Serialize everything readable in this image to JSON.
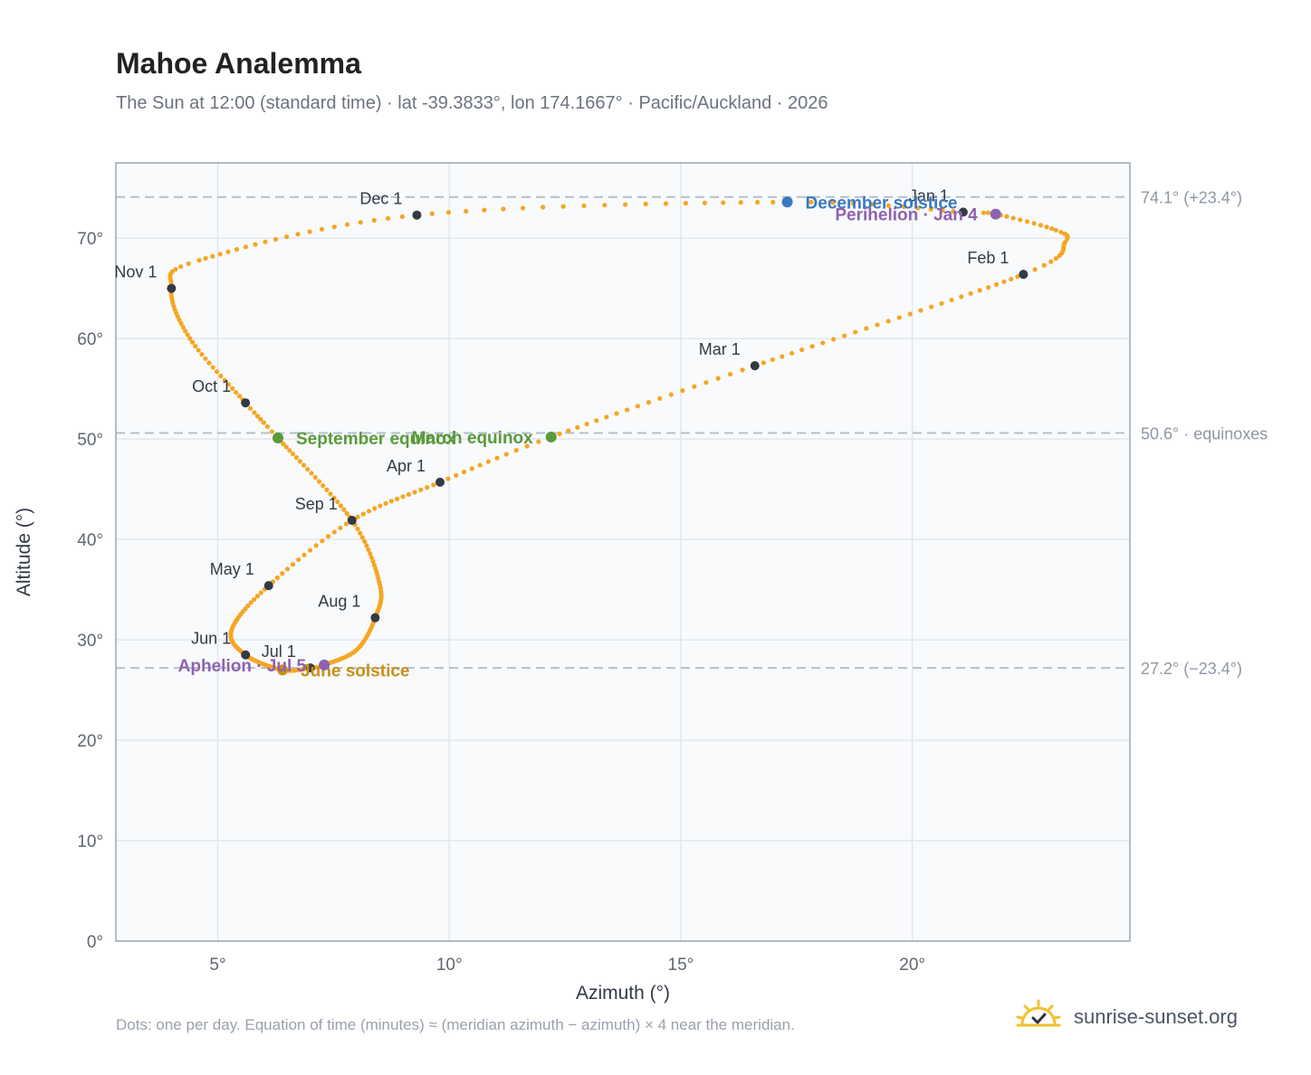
{
  "header": {
    "title": "Mahoe Analemma",
    "subtitle": "The Sun at 12:00 (standard time) · lat -39.3833°, lon 174.1667° · Pacific/Auckland · 2026"
  },
  "footer": {
    "note": "Dots: one per day. Equation of time (minutes) ≈ (meridian azimuth − azimuth) × 4 near the meridian.",
    "brand": "sunrise-sunset.org",
    "brand_icon": "sun-icon"
  },
  "colors": {
    "curve": "#f5a623",
    "month_dot": "#333a44",
    "equinox": "#5a9a3a",
    "december_solstice": "#3a78c0",
    "june_solstice": "#c8901a",
    "apsis": "#8e62b0",
    "plot_bg": "#f8fafc",
    "grid": "#e3e7ec",
    "reference_line": "#b4c0cc",
    "axis_text": "#5f6670"
  },
  "chart_data": {
    "type": "scatter",
    "title": "Mahoe Analemma",
    "xlabel": "Azimuth (°)",
    "ylabel": "Altitude (°)",
    "xlim": [
      2.8,
      24.7
    ],
    "ylim": [
      0,
      77.5
    ],
    "x_ticks": [
      5,
      10,
      15,
      20
    ],
    "y_ticks": [
      0,
      10,
      20,
      30,
      40,
      50,
      60,
      70
    ],
    "x_tick_labels": [
      "5°",
      "10°",
      "15°",
      "20°"
    ],
    "y_tick_labels": [
      "0°",
      "10°",
      "20°",
      "30°",
      "40°",
      "50°",
      "60°",
      "70°"
    ],
    "grid": true,
    "reference_lines": [
      {
        "altitude": 74.1,
        "label": "74.1° (+23.4°)"
      },
      {
        "altitude": 50.6,
        "label": "50.6° · equinoxes"
      },
      {
        "altitude": 27.2,
        "label": "27.2° (−23.4°)"
      }
    ],
    "month_markers": [
      {
        "label": "Jan 1",
        "azimuth": 21.1,
        "altitude": 72.6
      },
      {
        "label": "Feb 1",
        "azimuth": 22.4,
        "altitude": 66.4
      },
      {
        "label": "Mar 1",
        "azimuth": 16.6,
        "altitude": 57.3
      },
      {
        "label": "Apr 1",
        "azimuth": 9.8,
        "altitude": 45.7
      },
      {
        "label": "May 1",
        "azimuth": 6.1,
        "altitude": 35.4
      },
      {
        "label": "Jun 1",
        "azimuth": 5.6,
        "altitude": 28.5
      },
      {
        "label": "Jul 1",
        "azimuth": 7.0,
        "altitude": 27.2
      },
      {
        "label": "Aug 1",
        "azimuth": 8.4,
        "altitude": 32.2
      },
      {
        "label": "Sep 1",
        "azimuth": 7.9,
        "altitude": 41.9
      },
      {
        "label": "Oct 1",
        "azimuth": 5.6,
        "altitude": 53.6
      },
      {
        "label": "Nov 1",
        "azimuth": 4.0,
        "altitude": 65.0
      },
      {
        "label": "Dec 1",
        "azimuth": 9.3,
        "altitude": 72.3
      }
    ],
    "events": [
      {
        "label": "March equinox",
        "azimuth": 12.2,
        "altitude": 50.2,
        "kind": "equinox"
      },
      {
        "label": "September equinox",
        "azimuth": 6.3,
        "altitude": 50.1,
        "kind": "equinox"
      },
      {
        "label": "December solstice",
        "azimuth": 17.3,
        "altitude": 73.6,
        "kind": "december_solstice"
      },
      {
        "label": "June solstice",
        "azimuth": 6.4,
        "altitude": 27.0,
        "kind": "june_solstice"
      },
      {
        "label": "Perihelion · Jan 4",
        "azimuth": 21.8,
        "altitude": 72.4,
        "kind": "apsis"
      },
      {
        "label": "Aphelion · Jul 5",
        "azimuth": 7.3,
        "altitude": 27.5,
        "kind": "apsis"
      }
    ],
    "path_knots": [
      {
        "day": 1,
        "azimuth": 21.1,
        "altitude": 72.6
      },
      {
        "day": 4,
        "azimuth": 21.8,
        "altitude": 72.4
      },
      {
        "day": 14,
        "azimuth": 23.1,
        "altitude": 70.8
      },
      {
        "day": 20,
        "azimuth": 23.3,
        "altitude": 69.6
      },
      {
        "day": 32,
        "azimuth": 22.4,
        "altitude": 66.4
      },
      {
        "day": 60,
        "azimuth": 16.6,
        "altitude": 57.3
      },
      {
        "day": 79,
        "azimuth": 12.2,
        "altitude": 50.2
      },
      {
        "day": 91,
        "azimuth": 9.8,
        "altitude": 45.7
      },
      {
        "day": 106,
        "azimuth": 7.9,
        "altitude": 41.9
      },
      {
        "day": 121,
        "azimuth": 6.1,
        "altitude": 35.4
      },
      {
        "day": 136,
        "azimuth": 5.3,
        "altitude": 31.0
      },
      {
        "day": 152,
        "azimuth": 5.6,
        "altitude": 28.5
      },
      {
        "day": 172,
        "azimuth": 6.4,
        "altitude": 27.0
      },
      {
        "day": 182,
        "azimuth": 7.0,
        "altitude": 27.2
      },
      {
        "day": 186,
        "azimuth": 7.3,
        "altitude": 27.5
      },
      {
        "day": 200,
        "azimuth": 8.0,
        "altitude": 29.0
      },
      {
        "day": 213,
        "azimuth": 8.4,
        "altitude": 32.2
      },
      {
        "day": 227,
        "azimuth": 8.5,
        "altitude": 35.5
      },
      {
        "day": 244,
        "azimuth": 7.9,
        "altitude": 41.9
      },
      {
        "day": 266,
        "azimuth": 6.3,
        "altitude": 50.1
      },
      {
        "day": 274,
        "azimuth": 5.6,
        "altitude": 53.6
      },
      {
        "day": 290,
        "azimuth": 4.4,
        "altitude": 60.0
      },
      {
        "day": 305,
        "azimuth": 4.0,
        "altitude": 65.0
      },
      {
        "day": 315,
        "azimuth": 4.6,
        "altitude": 67.8
      },
      {
        "day": 335,
        "azimuth": 9.3,
        "altitude": 72.3
      },
      {
        "day": 355,
        "azimuth": 17.3,
        "altitude": 73.6
      },
      {
        "day": 366,
        "azimuth": 21.1,
        "altitude": 72.6
      }
    ]
  }
}
